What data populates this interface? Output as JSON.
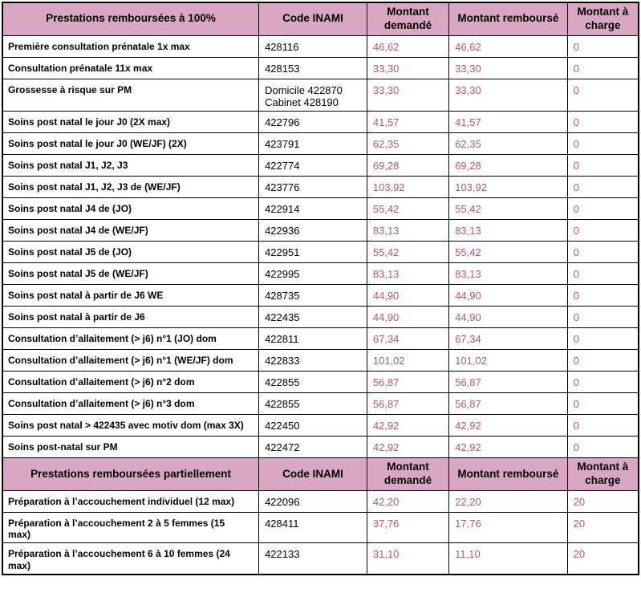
{
  "colors": {
    "header_bg": "#d9a7c3",
    "amount_text": "#b3567d",
    "border_color": "#000000",
    "page_bg": "#ffffff"
  },
  "table": {
    "sections": [
      {
        "columns": [
          "Prestations remboursées à 100%",
          "Code INAMI",
          "Montant demandé",
          "Montant remboursé",
          "Montant à charge"
        ],
        "rows": [
          {
            "label": "Première consultation prénatale 1x max",
            "code": "428116",
            "demande": "46,62",
            "rembourse": "46,62",
            "charge": "0"
          },
          {
            "label": "Consultation prénatale 11x max",
            "code": "428153",
            "demande": "33,30",
            "rembourse": "33,30",
            "charge": "0"
          },
          {
            "label": "Grossesse à risque sur PM",
            "code": "Domicile 422870\nCabinet 428190",
            "demande": "33,30",
            "rembourse": "33,30",
            "charge": "0"
          },
          {
            "label": "Soins post natal le jour J0 (2X max)",
            "code": "422796",
            "demande": "41,57",
            "rembourse": "41,57",
            "charge": "0"
          },
          {
            "label": "Soins post natal le jour J0  (WE/JF) (2X)",
            "code": "423791",
            "demande": "62,35",
            "rembourse": "62,35",
            "charge": "0"
          },
          {
            "label": "Soins post natal J1, J2, J3",
            "code": "422774",
            "demande": "69,28",
            "rembourse": "69,28",
            "charge": "0"
          },
          {
            "label": "Soins post natal J1, J2, J3 de (WE/JF)",
            "code": "423776",
            "demande": "103,92",
            "rembourse": "103,92",
            "charge": "0"
          },
          {
            "label": "Soins post natal J4 de (JO)",
            "code": "422914",
            "demande": "55,42",
            "rembourse": "55,42",
            "charge": "0"
          },
          {
            "label": "Soins post natal J4 de (WE/JF)",
            "code": "422936",
            "demande": "83,13",
            "rembourse": "83,13",
            "charge": "0"
          },
          {
            "label": "Soins post natal J5 de (JO)",
            "code": "422951",
            "demande": "55,42",
            "rembourse": "55,42",
            "charge": "0"
          },
          {
            "label": "Soins post natal J5 de (WE/JF)",
            "code": "422995",
            "demande": "83,13",
            "rembourse": "83,13",
            "charge": "0"
          },
          {
            "label": "Soins post natal à partir de J6 WE",
            "code": "428735",
            "demande": "44,90",
            "rembourse": "44,90",
            "charge": "0"
          },
          {
            "label": "Soins post natal à partir de J6",
            "code": "422435",
            "demande": "44,90",
            "rembourse": "44,90",
            "charge": "0"
          },
          {
            "label": "Consultation d’allaitement (> j6) n°1 (JO) dom",
            "code": "422811",
            "demande": "67,34",
            "rembourse": "67,34",
            "charge": "0"
          },
          {
            "label": "Consultation d’allaitement (> j6) n°1 (WE/JF) dom",
            "code": "422833",
            "demande": "101,02",
            "rembourse": "101,02",
            "charge": "0"
          },
          {
            "label": "Consultation d’allaitement (> j6) n°2 dom",
            "code": "422855",
            "demande": "56,87",
            "rembourse": "56,87",
            "charge": "0"
          },
          {
            "label": "Consultation d’allaitement (> j6) n°3 dom",
            "code": "422855",
            "demande": "56,87",
            "rembourse": "56,87",
            "charge": "0"
          },
          {
            "label": "Soins post natal > 422435 avec motiv dom (max 3X)",
            "code": "422450",
            "demande": "42,92",
            "rembourse": "42,92",
            "charge": "0"
          },
          {
            "label": "Soins post-natal sur PM",
            "code": "422472",
            "demande": "42,92",
            "rembourse": "42,92",
            "charge": "0"
          }
        ]
      },
      {
        "columns": [
          "Prestations remboursées partiellement",
          "Code INAMI",
          "Montant demandé",
          "Montant remboursé",
          "Montant à charge"
        ],
        "rows": [
          {
            "label": "Préparation à l’accouchement individuel (12 max)",
            "code": "422096",
            "demande": "42,20",
            "rembourse": "22,20",
            "charge": "20"
          },
          {
            "label": "Préparation  à l’accouchement 2 à 5 femmes (15\nmax)",
            "code": "428411",
            "demande": "37,76",
            "rembourse": "17,76",
            "charge": "20"
          },
          {
            "label": "Préparation  à l’accouchement 6 à 10  femmes (24\nmax)",
            "code": "422133",
            "demande": "31,10",
            "rembourse": "11,10",
            "charge": "20"
          }
        ]
      }
    ]
  }
}
